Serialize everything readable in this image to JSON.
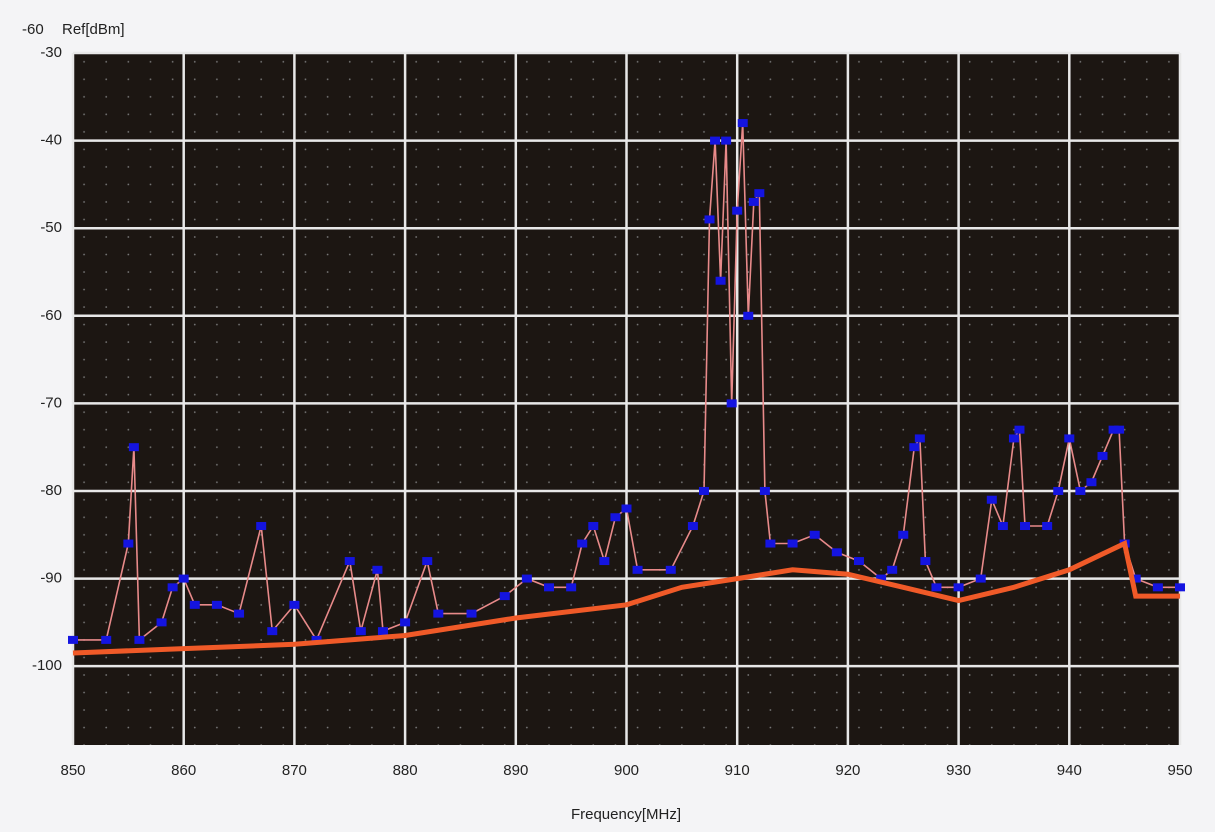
{
  "chart_data": {
    "type": "line",
    "corner_value": "-60",
    "y_axis_label": "Ref[dBm]",
    "x_axis_label": "Frequency[MHz]",
    "xlim": [
      850,
      950
    ],
    "xticks": [
      850,
      860,
      870,
      880,
      890,
      900,
      910,
      920,
      930,
      940,
      950
    ],
    "ylim": [
      -109,
      -30
    ],
    "yticks": [
      -30,
      -40,
      -50,
      -60,
      -70,
      -80,
      -90,
      -100
    ],
    "grid": true,
    "background": "#1c1612",
    "series": [
      {
        "color": "#e88a8a",
        "marker_color": "#1414e0",
        "x": [
          850,
          853,
          855,
          855.5,
          856,
          858,
          859,
          860,
          861,
          863,
          865,
          867,
          868,
          870,
          872,
          875,
          876,
          877.5,
          878,
          880,
          882,
          883,
          886,
          889,
          891,
          893,
          895,
          896,
          897,
          898,
          899,
          900,
          901,
          904,
          906,
          907,
          907.5,
          908,
          908.5,
          909,
          909.5,
          910,
          910.5,
          911,
          911.5,
          912,
          912.5,
          913,
          915,
          917,
          919,
          921,
          923,
          924,
          925,
          926,
          926.5,
          927,
          928,
          930,
          932,
          933,
          934,
          935,
          935.5,
          936,
          938,
          939,
          940,
          941,
          942,
          943,
          944,
          944.5,
          945,
          946,
          948,
          950
        ],
        "values": [
          -97,
          -97,
          -86,
          -75,
          -97,
          -95,
          -91,
          -90,
          -93,
          -93,
          -94,
          -84,
          -96,
          -93,
          -97,
          -88,
          -96,
          -89,
          -96,
          -95,
          -88,
          -94,
          -94,
          -92,
          -90,
          -91,
          -91,
          -86,
          -84,
          -88,
          -83,
          -82,
          -89,
          -89,
          -84,
          -80,
          -49,
          -40,
          -56,
          -40,
          -70,
          -48,
          -38,
          -60,
          -47,
          -46,
          -80,
          -86,
          -86,
          -85,
          -87,
          -88,
          -90,
          -89,
          -85,
          -75,
          -74,
          -88,
          -91,
          -91,
          -90,
          -81,
          -84,
          -74,
          -73,
          -84,
          -84,
          -80,
          -74,
          -80,
          -79,
          -76,
          -73,
          -73,
          -86,
          -90,
          -91,
          -91
        ]
      },
      {
        "color": "#f05a28",
        "x": [
          850,
          860,
          870,
          880,
          890,
          900,
          905,
          910,
          915,
          920,
          925,
          930,
          935,
          940,
          945,
          946,
          950
        ],
        "values": [
          -98.5,
          -98,
          -97.5,
          -96.5,
          -94.5,
          -93,
          -91,
          -90,
          -89,
          -89.5,
          -91,
          -92.5,
          -91,
          -89,
          -86,
          -92,
          -92
        ]
      }
    ]
  }
}
